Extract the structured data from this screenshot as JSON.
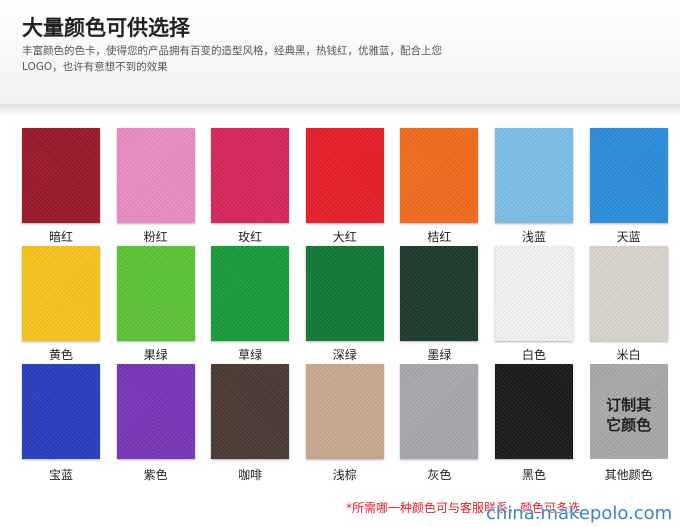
{
  "header": {
    "title": "大量颜色可供选择",
    "description": [
      "丰富颜色的色卡，使得您的产品拥有百变的造型风格，经典黑，热钱红，优雅蓝，配合上您",
      "LOGO，也许有意想不到的效果"
    ]
  },
  "swatches": [
    {
      "label": "暗红",
      "color": "#9a1a2b"
    },
    {
      "label": "粉红",
      "color": "#ea8cc2"
    },
    {
      "label": "玫红",
      "color": "#d8275c"
    },
    {
      "label": "大红",
      "color": "#e71f2b"
    },
    {
      "label": "桔红",
      "color": "#f36b1d"
    },
    {
      "label": "浅蓝",
      "color": "#7bbfe8"
    },
    {
      "label": "天蓝",
      "color": "#2b8fdd"
    },
    {
      "label": "黄色",
      "color": "#f6c41d"
    },
    {
      "label": "果绿",
      "color": "#5bc434"
    },
    {
      "label": "草绿",
      "color": "#189d3b"
    },
    {
      "label": "深绿",
      "color": "#127a39"
    },
    {
      "label": "墨绿",
      "color": "#1e3a2b"
    },
    {
      "label": "白色",
      "color": "#f3f3f3"
    },
    {
      "label": "米白",
      "color": "#d9d5cd"
    },
    {
      "label": "宝蓝",
      "color": "#283fc1"
    },
    {
      "label": "紫色",
      "color": "#7a35b8"
    },
    {
      "label": "咖啡",
      "color": "#4a3a33"
    },
    {
      "label": "浅棕",
      "color": "#c8a98d"
    },
    {
      "label": "灰色",
      "color": "#a8a9ae"
    },
    {
      "label": "黑色",
      "color": "#1b1b1b"
    }
  ],
  "custom": {
    "text": [
      "订制其",
      "它颜色"
    ],
    "label": "其他颜色",
    "color": "#a9a9a9"
  },
  "footer": {
    "note": "*所需哪一种颜色可与客服联系，颜色可多选",
    "watermark": "china.makepolo.com"
  }
}
